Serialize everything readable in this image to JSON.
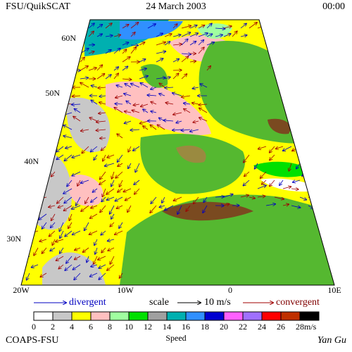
{
  "header": {
    "left": "FSU/QuikSCAT",
    "center": "24 March 2003",
    "right": "00:00"
  },
  "map": {
    "lat_labels": [
      "60N",
      "50N",
      "40N",
      "30N"
    ],
    "lon_labels": [
      "20W",
      "10W",
      "0",
      "10E"
    ]
  },
  "legend": {
    "divergent": "divergent",
    "scale": "scale",
    "scale_value": "10 m/s",
    "convergent": "convergent"
  },
  "colorbar": {
    "labels": [
      0,
      2,
      4,
      6,
      8,
      10,
      12,
      14,
      16,
      18,
      20,
      22,
      24,
      26,
      28
    ],
    "unit": "m/s",
    "title": "Speed",
    "colors": [
      "#ffffff",
      "#c8c8c8",
      "#ffff00",
      "#ffc0c0",
      "#a0ffa0",
      "#00e000",
      "#a0a0a0",
      "#00b0b0",
      "#3090ff",
      "#0000d0",
      "#ff60ff",
      "#a070ff",
      "#ff0000",
      "#c03000",
      "#000000"
    ]
  },
  "footer": {
    "left": "COAPS-FSU",
    "right": "Yan Gu"
  }
}
